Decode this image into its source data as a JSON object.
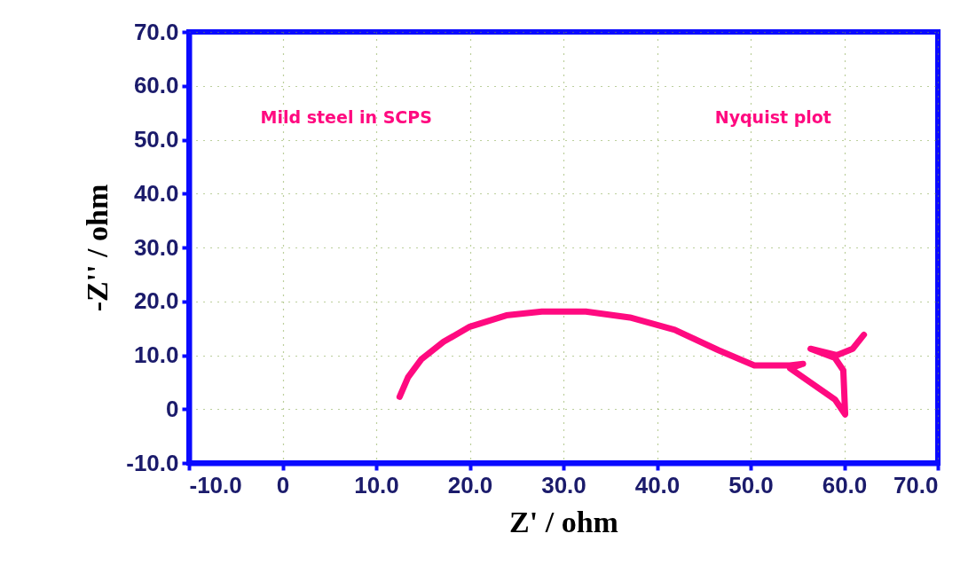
{
  "chart_data": {
    "type": "line",
    "xlabel": "Z' / ohm",
    "ylabel": "-Z'' / ohm",
    "annotations": [
      "Mild steel in SCPS",
      "Nyquist plot"
    ],
    "grid": true,
    "marker": "none",
    "line_style": "solid",
    "xlim": [
      -10,
      70
    ],
    "ylim": [
      -10,
      70
    ],
    "xticks": [
      {
        "value": -10,
        "label": "-10.0"
      },
      0,
      {
        "value": 10,
        "label": "10.0"
      },
      {
        "value": 20,
        "label": "20.0"
      },
      {
        "value": 30,
        "label": "30.0"
      },
      {
        "value": 40,
        "label": "40.0"
      },
      {
        "value": 50,
        "label": "50.0"
      },
      {
        "value": 60,
        "label": "60.0"
      },
      {
        "value": 70,
        "label": "70.0"
      }
    ],
    "yticks": [
      {
        "value": -10,
        "label": "-10.0"
      },
      0,
      {
        "value": 10,
        "label": "10.0"
      },
      {
        "value": 20,
        "label": "20.0"
      },
      {
        "value": 30,
        "label": "30.0"
      },
      {
        "value": 40,
        "label": "40.0"
      },
      {
        "value": 50,
        "label": "50.0"
      },
      {
        "value": 60,
        "label": "60.0"
      },
      {
        "value": 70,
        "label": "70.0"
      }
    ],
    "series": [
      {
        "color": "#ff0a80",
        "x": [
          12.5,
          13.4,
          14.8,
          17.2,
          20.0,
          23.9,
          27.7,
          32.4,
          37.1,
          41.9,
          46.6,
          50.4,
          54.2,
          55.6,
          54.2,
          59.0,
          60.1,
          59.9,
          59.0,
          56.4,
          59.2,
          60.9,
          62.1
        ],
        "values": [
          2.3,
          5.9,
          9.2,
          12.5,
          15.3,
          17.4,
          18.1,
          18.1,
          17.0,
          14.7,
          10.9,
          8.1,
          8.1,
          8.4,
          7.6,
          1.8,
          -1.0,
          7.2,
          9.5,
          11.2,
          10.0,
          11.2,
          13.8
        ]
      }
    ]
  }
}
